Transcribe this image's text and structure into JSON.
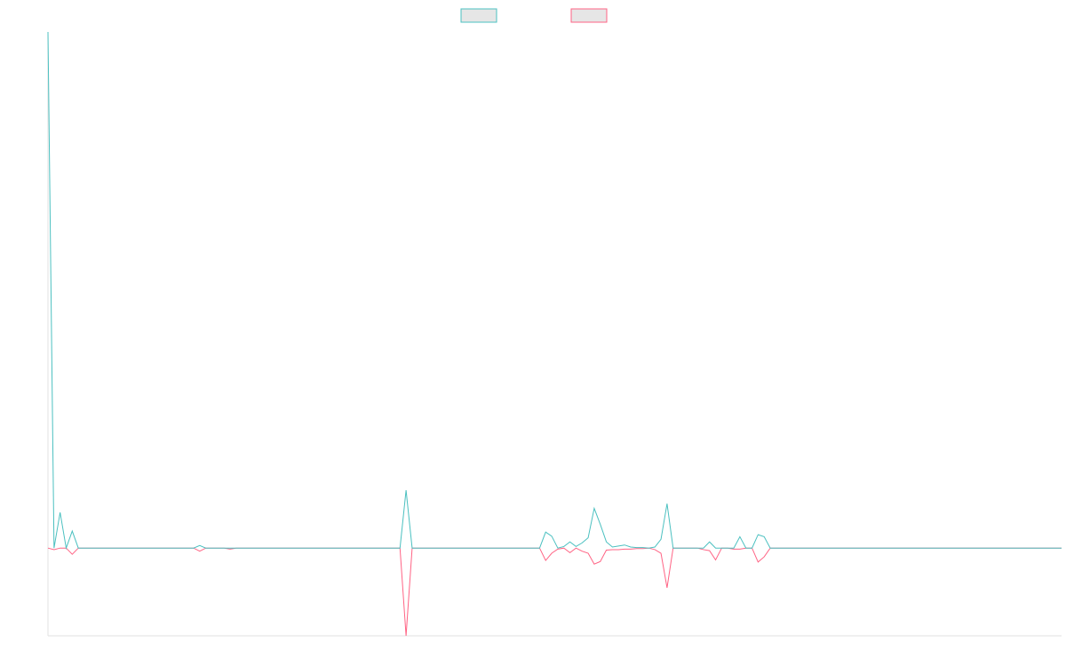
{
  "chart_data": {
    "type": "line",
    "categories": [
      null,
      null,
      null,
      null,
      null,
      null,
      null,
      null,
      null,
      null,
      null,
      null,
      null,
      null,
      null,
      null,
      null,
      null,
      null,
      null,
      null,
      null,
      null,
      null,
      null,
      null,
      null,
      null,
      null,
      null,
      null,
      null,
      null,
      null,
      null,
      null,
      null,
      null,
      null,
      null,
      null,
      null,
      null,
      null,
      null,
      null,
      null,
      null,
      null,
      null,
      null,
      null,
      null,
      null,
      null,
      null,
      null,
      null,
      null,
      null,
      null,
      null,
      null,
      null,
      null,
      null,
      null,
      null,
      null,
      null,
      null,
      null,
      null,
      null,
      null,
      null,
      null,
      null,
      null,
      null,
      null,
      null,
      null,
      null,
      null,
      null,
      null,
      null,
      null,
      null,
      null,
      null,
      null,
      null,
      null,
      null,
      null,
      null,
      null,
      null,
      null,
      null,
      null,
      null,
      null,
      null,
      null,
      null,
      null,
      null,
      null,
      null,
      null,
      null,
      null,
      null,
      null,
      null,
      null,
      null,
      null,
      null,
      null,
      null,
      null,
      null,
      null,
      null,
      null,
      null,
      null,
      null,
      null,
      null,
      null,
      null,
      null,
      null,
      null,
      null,
      null,
      null,
      null,
      null,
      null,
      null,
      null,
      null,
      null,
      null,
      null,
      null,
      null,
      null,
      null,
      null,
      null,
      null,
      null,
      null,
      null,
      null,
      null,
      null,
      null,
      null,
      null,
      null
    ],
    "series": [
      {
        "color": "#4bc0c0",
        "values": [
          100,
          0,
          6.9,
          0,
          3.3,
          0,
          0,
          0,
          0,
          0,
          0,
          0,
          0,
          0,
          0,
          0,
          0,
          0,
          0,
          0,
          0,
          0,
          0,
          0,
          0,
          0.5,
          0,
          0,
          0,
          0,
          0,
          0,
          0,
          0,
          0,
          0,
          0,
          0,
          0,
          0,
          0,
          0,
          0,
          0,
          0,
          0,
          0,
          0,
          0,
          0,
          0,
          0,
          0,
          0,
          0,
          0,
          0,
          0,
          0,
          11.2,
          0,
          0,
          0,
          0,
          0,
          0,
          0,
          0,
          0,
          0,
          0,
          0,
          0,
          0,
          0,
          0,
          0,
          0,
          0,
          0,
          0,
          0,
          3.1,
          2.3,
          0,
          0.3,
          1.2,
          0.3,
          1,
          2,
          7.7,
          4.6,
          1.2,
          0.2,
          0.4,
          0.6,
          0.2,
          0.1,
          0.1,
          0,
          0.2,
          1.7,
          8.6,
          0,
          0,
          0,
          0,
          0,
          0,
          1.2,
          0,
          0,
          0,
          0,
          2.2,
          0,
          0,
          2.6,
          2.2,
          0,
          0,
          0,
          0,
          0,
          0,
          0,
          0,
          0,
          0,
          0,
          0,
          0,
          0,
          0,
          0,
          0,
          0,
          0,
          0,
          0,
          0,
          0,
          0,
          0,
          0,
          0,
          0,
          0,
          0,
          0,
          0,
          0,
          0,
          0,
          0,
          0,
          0,
          0,
          0,
          0,
          0,
          0,
          0,
          0,
          0,
          0,
          0,
          0
        ]
      },
      {
        "color": "#ff6384",
        "values": [
          0,
          -0.3,
          0,
          0,
          -1.2,
          0,
          0,
          0,
          0,
          0,
          0,
          0,
          0,
          0,
          0,
          0,
          0,
          0,
          0,
          0,
          0,
          0,
          0,
          0,
          0,
          -0.6,
          0,
          0,
          0,
          0,
          -0.2,
          0,
          0,
          0,
          0,
          0,
          0,
          0,
          0,
          0,
          0,
          0,
          0,
          0,
          0,
          0,
          0,
          0,
          0,
          0,
          0,
          0,
          0,
          0,
          0,
          0,
          0,
          0,
          0,
          -17,
          0,
          0,
          0,
          0,
          0,
          0,
          0,
          0,
          0,
          0,
          0,
          0,
          0,
          0,
          0,
          0,
          0,
          0,
          0,
          0,
          0,
          0,
          -2.4,
          -1,
          -0.2,
          0,
          -0.9,
          0,
          -0.6,
          -1,
          -3.1,
          -2.6,
          -0.4,
          -0.3,
          -0.3,
          -0.2,
          -0.2,
          -0.1,
          -0.1,
          0,
          -0.3,
          -1,
          -7.7,
          0,
          0,
          0,
          0,
          0,
          -0.3,
          -0.5,
          -2.3,
          0,
          0,
          -0.2,
          -0.2,
          0,
          0,
          -2.7,
          -1.7,
          0,
          0,
          0,
          0,
          0,
          0,
          0,
          0,
          0,
          0,
          0,
          0,
          0,
          0,
          0,
          0,
          0,
          0,
          0,
          0,
          0,
          0,
          0,
          0,
          0,
          0,
          0,
          0,
          0,
          0,
          0,
          0,
          0,
          0,
          0,
          0,
          0,
          0,
          0,
          0,
          0,
          0,
          0,
          0,
          0,
          0,
          0,
          0,
          0
        ]
      }
    ],
    "ylim": [
      -17,
      100
    ],
    "legend": "top"
  }
}
